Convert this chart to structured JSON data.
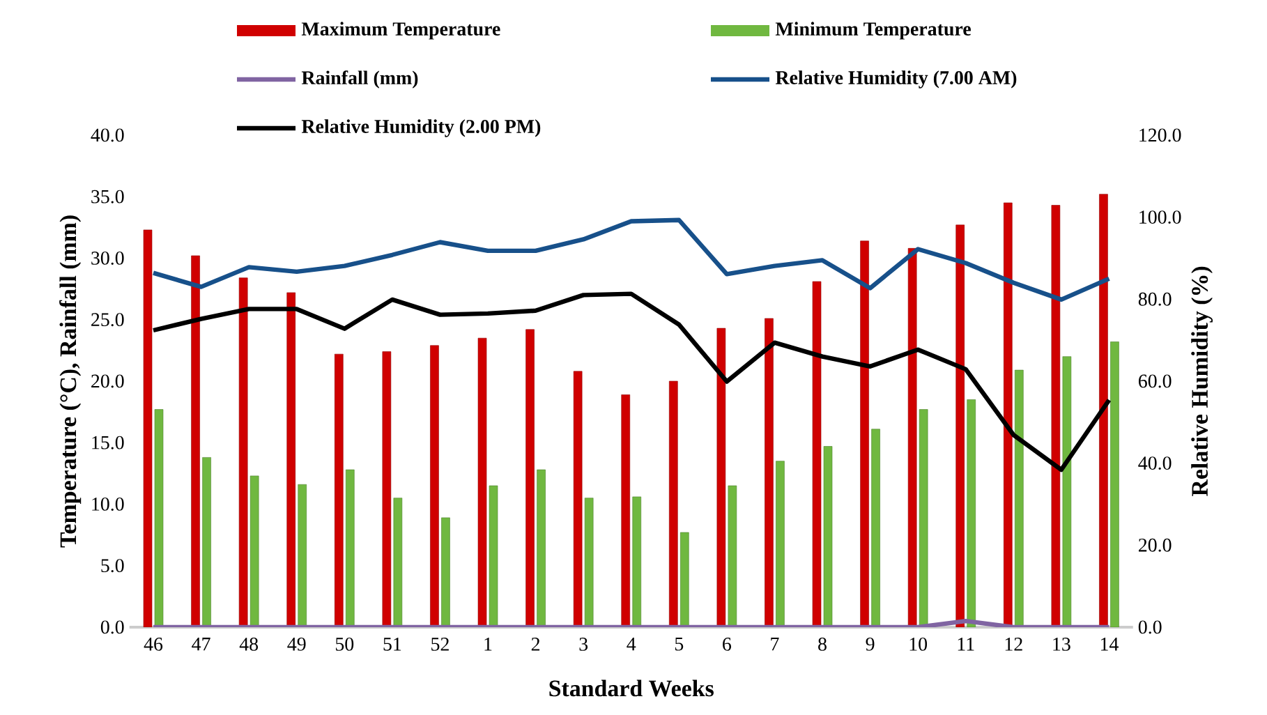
{
  "chart_data": {
    "type": "bar",
    "legend": "top",
    "categories": [
      "46",
      "47",
      "48",
      "49",
      "50",
      "51",
      "52",
      "1",
      "2",
      "3",
      "4",
      "5",
      "6",
      "7",
      "8",
      "9",
      "10",
      "11",
      "12",
      "13",
      "14"
    ],
    "series": [
      {
        "name": "Maximum Temperature",
        "color": "#d00000",
        "values": [
          32.3,
          30.2,
          28.4,
          27.2,
          22.2,
          22.4,
          22.9,
          23.5,
          24.2,
          20.8,
          18.9,
          20.0,
          24.3,
          25.1,
          28.1,
          31.4,
          30.8,
          32.7,
          34.5,
          34.3,
          35.2
        ]
      },
      {
        "name": "Minimum Temperature",
        "color": "#70b840",
        "values": [
          17.7,
          13.8,
          12.3,
          11.6,
          12.8,
          10.5,
          8.9,
          11.5,
          12.8,
          10.5,
          10.6,
          7.7,
          11.5,
          13.5,
          14.7,
          16.1,
          17.7,
          18.5,
          20.9,
          22.0,
          23.2
        ]
      },
      {
        "name": "Rainfall (mm)",
        "type": "line",
        "color": "#8064a2",
        "values": [
          0,
          0,
          0,
          0,
          0,
          0,
          0,
          0,
          0,
          0,
          0,
          0,
          0,
          0,
          0,
          0,
          0,
          0.5,
          0,
          0,
          0
        ]
      },
      {
        "name": "Relative Humidity (7.00 AM)",
        "type": "line",
        "axis": "y2",
        "color": "#17508a",
        "values": [
          86.4,
          83.0,
          87.8,
          86.7,
          88.1,
          90.8,
          93.9,
          91.8,
          91.8,
          94.6,
          99.0,
          99.3,
          86.1,
          88.1,
          89.5,
          82.7,
          92.2,
          88.8,
          84.0,
          79.9,
          85.0
        ]
      },
      {
        "name": "Relative Humidity (2.00 PM)",
        "type": "line",
        "axis": "y2",
        "color": "#000000",
        "values": [
          72.4,
          75.2,
          77.6,
          77.6,
          72.8,
          79.9,
          76.2,
          76.5,
          77.2,
          81.0,
          81.3,
          73.8,
          59.9,
          69.4,
          66.0,
          63.6,
          67.7,
          62.9,
          46.9,
          38.4,
          55.4
        ]
      }
    ],
    "xlabel": "Standard Weeks",
    "ylabel": "Temperature (°C), Rainfall (mm)",
    "y2label": "Relative Humidity (%)",
    "ylim": [
      0,
      40
    ],
    "yticks": [
      {
        "value": 0,
        "label": "0.0"
      },
      {
        "value": 5,
        "label": "5.0"
      },
      {
        "value": 10,
        "label": "10.0"
      },
      {
        "value": 15,
        "label": "15.0"
      },
      {
        "value": 20,
        "label": "20.0"
      },
      {
        "value": 25,
        "label": "25.0"
      },
      {
        "value": 30,
        "label": "30.0"
      },
      {
        "value": 35,
        "label": "35.0"
      },
      {
        "value": 40,
        "label": "40.0"
      }
    ],
    "y2lim": [
      0,
      120
    ],
    "y2ticks": [
      {
        "value": 0,
        "label": "0.0"
      },
      {
        "value": 20,
        "label": "20.0"
      },
      {
        "value": 40,
        "label": "40.0"
      },
      {
        "value": 60,
        "label": "60.0"
      },
      {
        "value": 80,
        "label": "80.0"
      },
      {
        "value": 100,
        "label": "100.0"
      },
      {
        "value": 120,
        "label": "120.0"
      }
    ]
  }
}
